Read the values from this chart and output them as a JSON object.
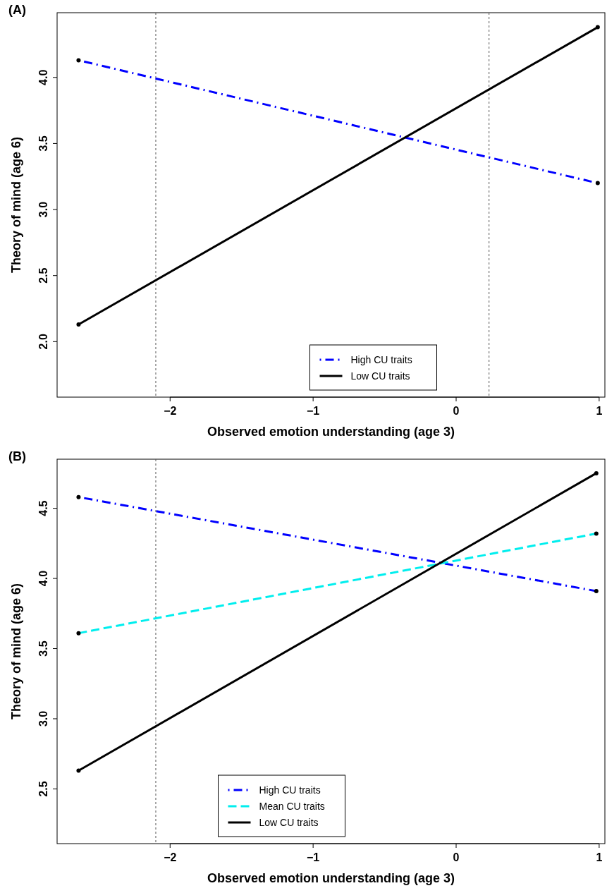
{
  "chart_data": [
    {
      "type": "line",
      "title": "(A)",
      "xlabel": "Observed emotion understanding (age 3)",
      "ylabel": "Theory of mind (age 6)",
      "x": [
        -2.64,
        0.99
      ],
      "xlim": [
        -2.79,
        1.04
      ],
      "xticks": [
        -2,
        -1,
        0,
        1
      ],
      "ylim": [
        1.58,
        4.49
      ],
      "yticks": [
        {
          "value": 2,
          "label": "2.0"
        },
        2.5,
        {
          "value": 3,
          "label": "3.0"
        },
        3.5,
        {
          "value": 4,
          "label": "4.0"
        }
      ],
      "grid": false,
      "legend": "bottom",
      "marker": "circle",
      "series": [
        {
          "name": "High CU traits",
          "color": "#0000ff",
          "line_style": "dashdot",
          "values": [
            4.13,
            3.2
          ]
        },
        {
          "name": "Low CU traits",
          "color": "#000000",
          "line_style": "solid",
          "values": [
            2.13,
            4.38
          ]
        }
      ],
      "ref_lines": [
        {
          "axis": "x",
          "value": -2.1,
          "color": "#555555",
          "line_style": "dotted"
        },
        {
          "axis": "x",
          "value": 0.23,
          "color": "#555555",
          "line_style": "dotted"
        }
      ]
    },
    {
      "type": "line",
      "title": "(B)",
      "xlabel": "Observed emotion understanding (age 3)",
      "ylabel": "Theory of mind (age 6)",
      "x": [
        -2.64,
        0.98
      ],
      "xlim": [
        -2.79,
        1.04
      ],
      "xticks": [
        -2,
        -1,
        0,
        1
      ],
      "ylim": [
        2.11,
        4.85
      ],
      "yticks": [
        2.5,
        {
          "value": 3,
          "label": "3.0"
        },
        3.5,
        {
          "value": 4,
          "label": "4.0"
        },
        4.5
      ],
      "grid": false,
      "legend": "bottom",
      "marker": "circle",
      "series": [
        {
          "name": "High CU traits",
          "color": "#0000ff",
          "line_style": "dashdot",
          "values": [
            4.58,
            3.91
          ]
        },
        {
          "name": "Mean CU traits",
          "color": "#00eeee",
          "line_style": "dashed",
          "values": [
            3.61,
            4.32
          ]
        },
        {
          "name": "Low CU traits",
          "color": "#000000",
          "line_style": "solid",
          "values": [
            2.63,
            4.75
          ]
        }
      ],
      "ref_lines": [
        {
          "axis": "x",
          "value": -2.1,
          "color": "#555555",
          "line_style": "dotted"
        }
      ]
    }
  ]
}
